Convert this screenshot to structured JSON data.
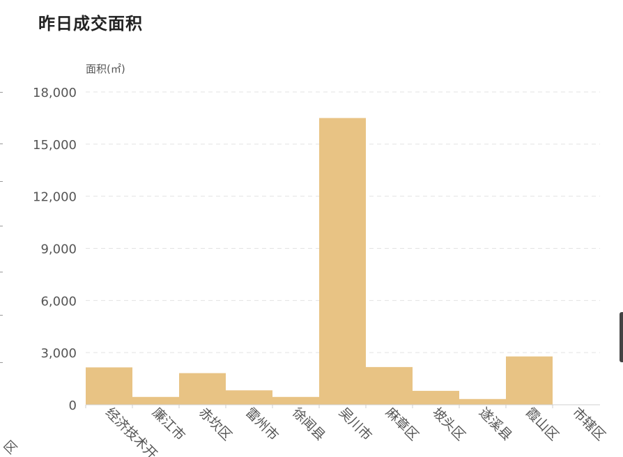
{
  "header": {
    "title": "昨日成交面积"
  },
  "left_partial": {
    "label": "区"
  },
  "chart_data": {
    "type": "bar",
    "ylabel": "面积(㎡)",
    "ylim": [
      0,
      18000
    ],
    "yticks": [
      0,
      3000,
      6000,
      9000,
      12000,
      15000,
      18000
    ],
    "ytick_labels": [
      "0",
      "3,000",
      "6,000",
      "9,000",
      "12,000",
      "15,000",
      "18,000"
    ],
    "categories": [
      "经济技术开",
      "廉江市",
      "赤坎区",
      "雷州市",
      "徐闻县",
      "吴川市",
      "麻章区",
      "坡头区",
      "遂溪县",
      "霞山区",
      "市辖区"
    ],
    "values": [
      2150,
      450,
      1820,
      830,
      450,
      16500,
      2170,
      800,
      330,
      2780,
      0
    ],
    "grid": true,
    "colors": {
      "bar": "#e8c384",
      "grid": "#e3e3e3",
      "axis": "#cfcfcf",
      "text": "#555555"
    }
  }
}
